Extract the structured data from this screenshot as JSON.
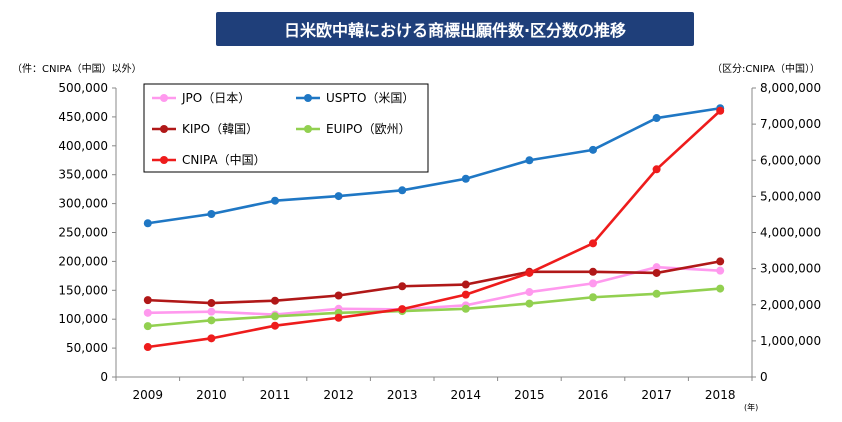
{
  "page": {
    "title": "日米欧中韓における商標出願件数·区分数の推移",
    "left_unit": "（件：CNIPA（中国）以外）",
    "right_unit": "（区分:CNIPA（中国））",
    "year_suffix": "(年)"
  },
  "chart_data": {
    "type": "line",
    "title": "日米欧中韓における商標出願件数·区分数の推移",
    "x": [
      "2009",
      "2010",
      "2011",
      "2012",
      "2013",
      "2014",
      "2015",
      "2016",
      "2017",
      "2018"
    ],
    "yleft": {
      "label": "（件：CNIPA（中国）以外）",
      "ylim": [
        0,
        500000
      ],
      "ticks": [
        "0",
        "50,000",
        "100,000",
        "150,000",
        "200,000",
        "250,000",
        "300,000",
        "350,000",
        "400,000",
        "450,000",
        "500,000"
      ]
    },
    "yright": {
      "label": "（区分:CNIPA（中国））",
      "ylim": [
        0,
        8000000
      ],
      "ticks": [
        "0",
        "1,000,000",
        "2,000,000",
        "3,000,000",
        "4,000,000",
        "5,000,000",
        "6,000,000",
        "7,000,000",
        "8,000,000"
      ]
    },
    "series": [
      {
        "name": "JPO（日本）",
        "color": "#ff99ee",
        "axis": "left",
        "values": [
          111000,
          113000,
          108000,
          118000,
          117000,
          124000,
          147000,
          162000,
          190000,
          184000
        ]
      },
      {
        "name": "USPTO（米国）",
        "color": "#1f77c4",
        "axis": "left",
        "values": [
          266000,
          282000,
          305000,
          313000,
          323000,
          343000,
          375000,
          393000,
          448000,
          465000
        ]
      },
      {
        "name": "KIPO（韓国）",
        "color": "#b01818",
        "axis": "left",
        "values": [
          133000,
          128000,
          132000,
          141000,
          157000,
          160000,
          182000,
          182000,
          180000,
          200000
        ]
      },
      {
        "name": "EUIPO（欧州）",
        "color": "#92d050",
        "axis": "left",
        "values": [
          88000,
          98000,
          105000,
          111000,
          114000,
          118000,
          127000,
          138000,
          144000,
          153000
        ]
      },
      {
        "name": "CNIPA（中国）",
        "color": "#ee1c1c",
        "axis": "right",
        "values": [
          830000,
          1070000,
          1420000,
          1640000,
          1880000,
          2280000,
          2880000,
          3700000,
          5750000,
          7370000
        ]
      }
    ]
  }
}
